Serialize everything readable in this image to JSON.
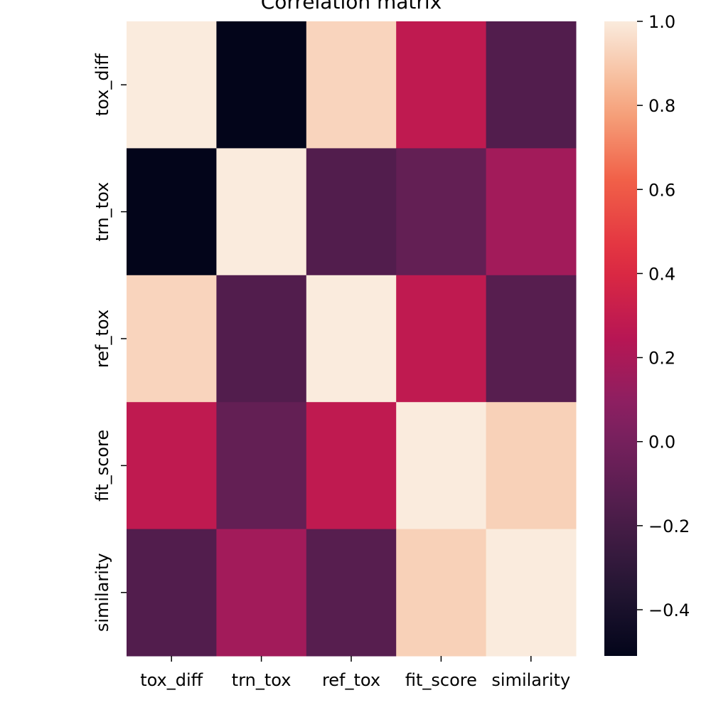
{
  "chart_data": {
    "type": "heatmap",
    "title": "Correlation matrix",
    "x_labels": [
      "tox_diff",
      "trn_tox",
      "ref_tox",
      "fit_score",
      "similarity"
    ],
    "y_labels": [
      "tox_diff",
      "trn_tox",
      "ref_tox",
      "fit_score",
      "similarity"
    ],
    "values": [
      [
        1.0,
        -0.51,
        0.93,
        0.28,
        -0.15
      ],
      [
        -0.51,
        1.0,
        -0.15,
        -0.08,
        0.17
      ],
      [
        0.93,
        -0.15,
        1.0,
        0.28,
        -0.13
      ],
      [
        0.28,
        -0.08,
        0.28,
        1.0,
        0.92
      ],
      [
        -0.15,
        0.17,
        -0.13,
        0.92,
        1.0
      ]
    ],
    "colorbar": {
      "min": -0.51,
      "max": 1.0,
      "ticks": [
        1.0,
        0.8,
        0.6,
        0.4,
        0.2,
        0.0,
        -0.2,
        -0.4
      ],
      "tick_labels": [
        "1.0",
        "0.8",
        "0.6",
        "0.4",
        "0.2",
        "0.0",
        "−0.2",
        "−0.4"
      ]
    },
    "colormap": "rocket",
    "xlabel": "",
    "ylabel": ""
  }
}
